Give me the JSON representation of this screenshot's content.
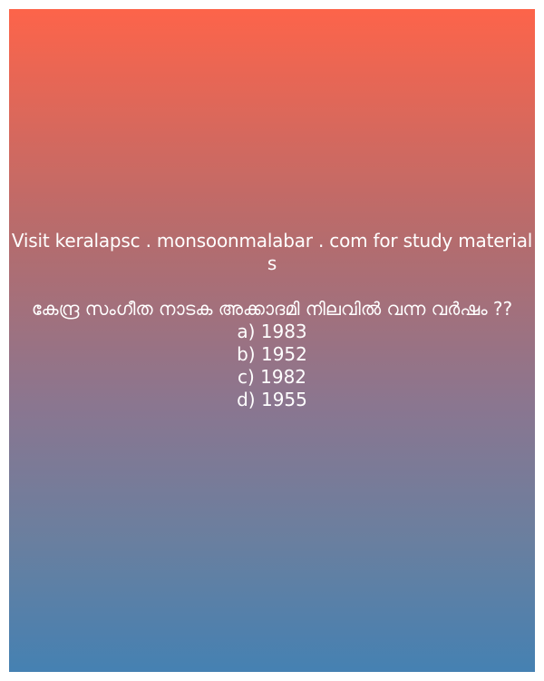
{
  "promo_text": "Visit keralapsc . monsoonmalabar . com for study materials",
  "question": "കേന്ദ്ര സംഗീത നാടക അക്കാദമി  നിലവിൽ വന്ന വർഷം ??",
  "options": [
    "a) 1983",
    "b) 1952",
    "c) 1982",
    "d) 1955"
  ],
  "colors": {
    "gradient_top": "#fd644a",
    "gradient_bottom": "#4581b2",
    "text": "#ffffff"
  }
}
